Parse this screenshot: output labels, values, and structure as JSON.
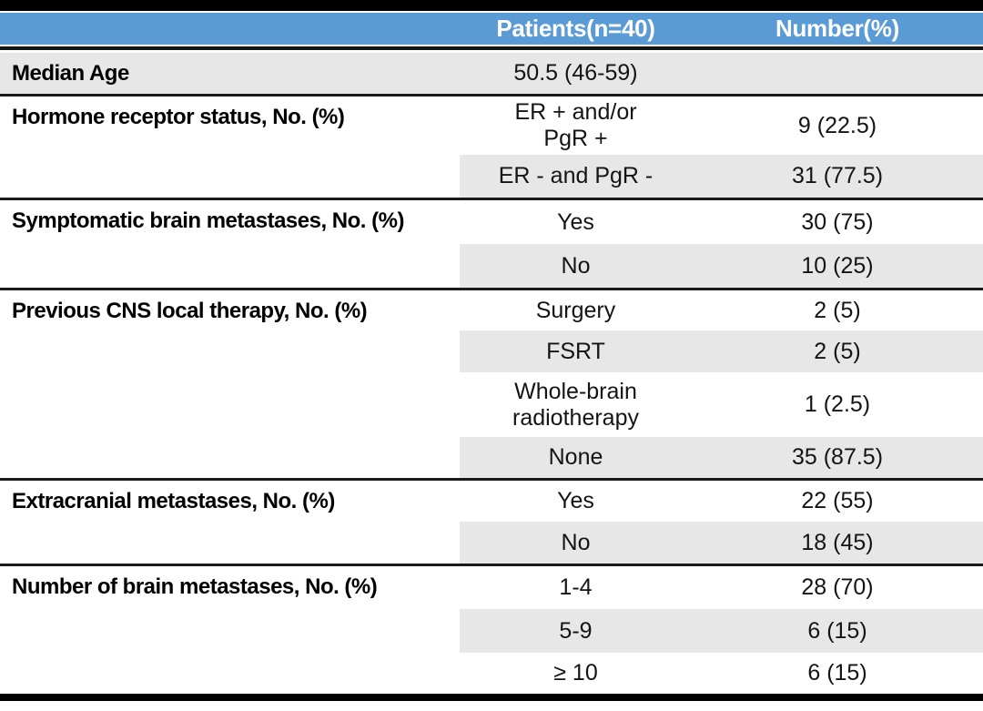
{
  "header": {
    "patients": "Patients(n=40)",
    "number": "Number(%)"
  },
  "sections": [
    {
      "label": "Median Age",
      "rows": [
        {
          "patients": "50.5 (46-59)",
          "number": ""
        }
      ]
    },
    {
      "label": "Hormone receptor status, No. (%)",
      "rows": [
        {
          "patients": "ER + and/or\nPgR +",
          "number": "9 (22.5)"
        },
        {
          "patients": "ER - and PgR -",
          "number": "31 (77.5)"
        }
      ]
    },
    {
      "label": "Symptomatic brain metastases, No. (%)",
      "rows": [
        {
          "patients": "Yes",
          "number": "30 (75)"
        },
        {
          "patients": "No",
          "number": "10 (25)"
        }
      ]
    },
    {
      "label": "Previous CNS local therapy, No. (%)",
      "rows": [
        {
          "patients": "Surgery",
          "number": "2 (5)"
        },
        {
          "patients": "FSRT",
          "number": "2 (5)"
        },
        {
          "patients": "Whole-brain\nradiotherapy",
          "number": "1 (2.5)"
        },
        {
          "patients": "None",
          "number": "35 (87.5)"
        }
      ]
    },
    {
      "label": "Extracranial metastases, No. (%)",
      "rows": [
        {
          "patients": "Yes",
          "number": "22 (55)"
        },
        {
          "patients": "No",
          "number": "18 (45)"
        }
      ]
    },
    {
      "label": "Number of brain metastases, No. (%)",
      "rows": [
        {
          "patients": "1-4",
          "number": "28 (70)"
        },
        {
          "patients": "5-9",
          "number": "6 (15)"
        },
        {
          "patients": "≥ 10",
          "number": "6 (15)"
        }
      ]
    }
  ],
  "colors": {
    "header_bg": "#5B9BD5",
    "header_text": "#FFFFFF",
    "row_shade": "#E8E7E7",
    "rule": "#000000"
  }
}
